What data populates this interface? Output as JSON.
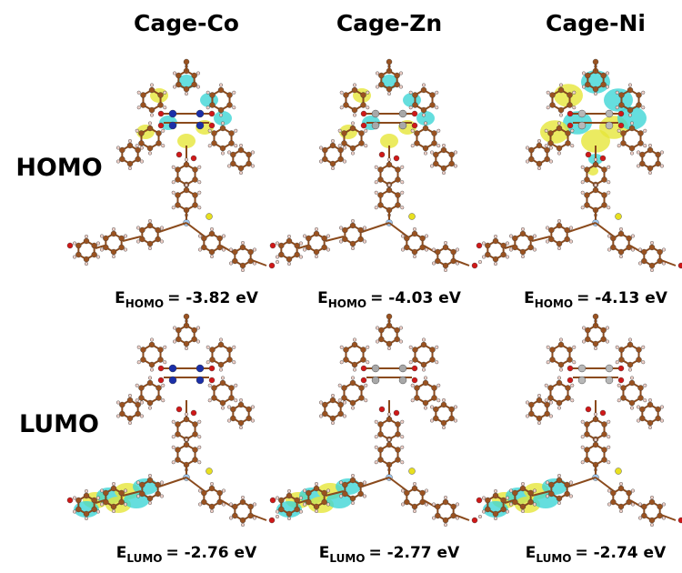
{
  "columns": [
    "Cage-Co",
    "Cage-Zn",
    "Cage-Ni"
  ],
  "rows": [
    {
      "label": "HOMO",
      "energies": [
        {
          "symbol": "E",
          "subscript": "HOMO",
          "value": "= -3.82 eV"
        },
        {
          "symbol": "E",
          "subscript": "HOMO",
          "value": "= -4.03 eV"
        },
        {
          "symbol": "E",
          "subscript": "HOMO",
          "value": "= -4.13 eV"
        }
      ]
    },
    {
      "label": "LUMO",
      "energies": [
        {
          "symbol": "E",
          "subscript": "LUMO",
          "value": "= -2.76 eV"
        },
        {
          "symbol": "E",
          "subscript": "LUMO",
          "value": "= -2.77 eV"
        },
        {
          "symbol": "E",
          "subscript": "LUMO",
          "value": "= -2.74 eV"
        }
      ]
    }
  ]
}
